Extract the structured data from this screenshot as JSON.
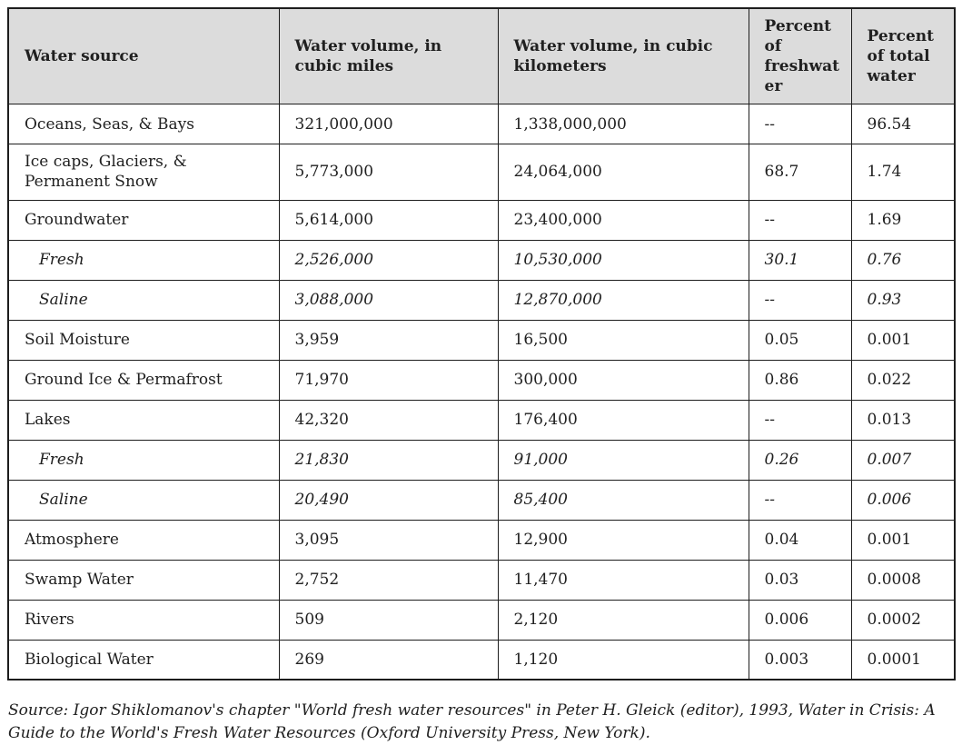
{
  "chart_data": {
    "type": "table",
    "columns": [
      "Water source",
      "Water volume, in cubic miles",
      "Water volume, in cubic kilometers",
      "Percent of freshwater",
      "Percent of total water"
    ],
    "rows": [
      {
        "emphasis": "normal",
        "cells": [
          "Oceans, Seas, & Bays",
          "321,000,000",
          "1,338,000,000",
          "--",
          "96.54"
        ]
      },
      {
        "emphasis": "normal",
        "cells": [
          "Ice caps, Glaciers, & Permanent Snow",
          "5,773,000",
          "24,064,000",
          "68.7",
          "1.74"
        ]
      },
      {
        "emphasis": "normal",
        "cells": [
          "Groundwater",
          "5,614,000",
          "23,400,000",
          "--",
          "1.69"
        ]
      },
      {
        "emphasis": "sub",
        "cells": [
          "Fresh",
          "2,526,000",
          "10,530,000",
          "30.1",
          "0.76"
        ]
      },
      {
        "emphasis": "sub",
        "cells": [
          "Saline",
          "3,088,000",
          "12,870,000",
          "--",
          "0.93"
        ]
      },
      {
        "emphasis": "normal",
        "cells": [
          "Soil Moisture",
          "3,959",
          "16,500",
          "0.05",
          "0.001"
        ]
      },
      {
        "emphasis": "normal",
        "cells": [
          "Ground Ice & Permafrost",
          "71,970",
          "300,000",
          "0.86",
          "0.022"
        ]
      },
      {
        "emphasis": "normal",
        "cells": [
          "Lakes",
          "42,320",
          "176,400",
          "--",
          "0.013"
        ]
      },
      {
        "emphasis": "sub",
        "cells": [
          "Fresh",
          "21,830",
          "91,000",
          "0.26",
          "0.007"
        ]
      },
      {
        "emphasis": "sub",
        "cells": [
          "Saline",
          "20,490",
          "85,400",
          "--",
          "0.006"
        ]
      },
      {
        "emphasis": "normal",
        "cells": [
          "Atmosphere",
          "3,095",
          "12,900",
          "0.04",
          "0.001"
        ]
      },
      {
        "emphasis": "normal",
        "cells": [
          "Swamp Water",
          "2,752",
          "11,470",
          "0.03",
          "0.0008"
        ]
      },
      {
        "emphasis": "normal",
        "cells": [
          "Rivers",
          "509",
          "2,120",
          "0.006",
          "0.0002"
        ]
      },
      {
        "emphasis": "normal",
        "cells": [
          "Biological Water",
          "269",
          "1,120",
          "0.003",
          "0.0001"
        ]
      }
    ]
  },
  "footer": {
    "source_note": "Source: Igor Shiklomanov's chapter \"World fresh water resources\" in Peter H. Gleick (editor), 1993, Water in Crisis: A Guide to the World's Fresh Water Resources (Oxford University Press, New York)."
  },
  "colors": {
    "header_bg": "#dcdcdc",
    "border": "#1d1d1d",
    "text": "#202020",
    "page_bg": "#ffffff"
  }
}
